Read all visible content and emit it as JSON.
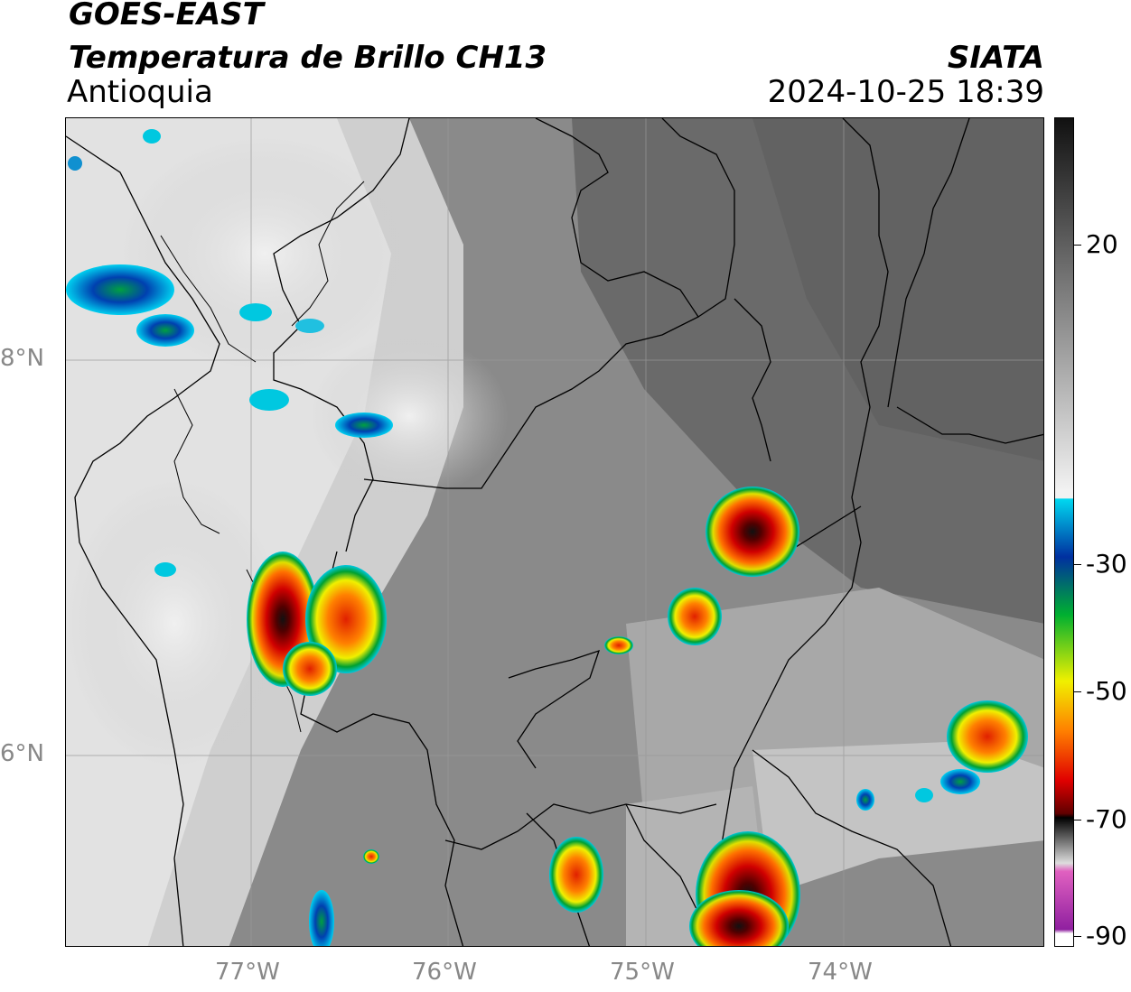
{
  "header": {
    "satellite": "GOES-EAST",
    "product": "Temperatura de Brillo CH13",
    "region": "Antioquia",
    "organization": "SIATA",
    "timestamp": "2024-10-25 18:39"
  },
  "map": {
    "lat_ticks": [
      {
        "label": "8°N"
      },
      {
        "label": "6°N"
      }
    ],
    "lon_ticks": [
      {
        "label": "77°W"
      },
      {
        "label": "76°W"
      },
      {
        "label": "75°W"
      },
      {
        "label": "74°W"
      }
    ]
  },
  "colorbar": {
    "range": [
      -90,
      40
    ],
    "ticks": [
      {
        "value": 20,
        "label": "20"
      },
      {
        "value": -30,
        "label": "-30"
      },
      {
        "value": -50,
        "label": "-50"
      },
      {
        "value": -70,
        "label": "-70"
      },
      {
        "value": -90,
        "label": "-90"
      }
    ],
    "colors": {
      "warm_dark": "#111111",
      "mid_gray": "#777777",
      "light": "#f2f2f2",
      "cyan": "#00d8f0",
      "blue": "#0030a0",
      "green": "#00b030",
      "yellow": "#f0f000",
      "orange": "#ff8000",
      "red": "#e00000",
      "dark_red": "#600000",
      "black": "#000000",
      "pink": "#e060c0",
      "purple": "#9020a0"
    }
  }
}
